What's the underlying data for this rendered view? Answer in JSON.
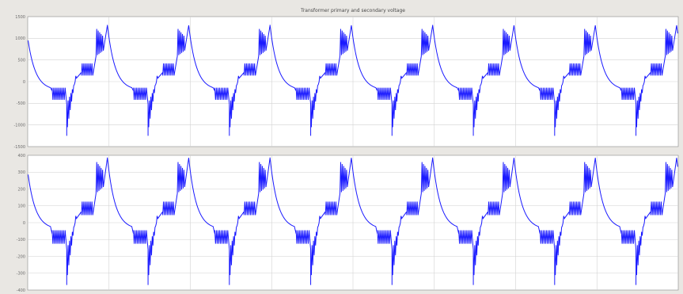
{
  "figure": {
    "background": "#e9e7e3",
    "plot_background": "#ffffff",
    "line_color": "#1a1aff",
    "grid_color": "#d2d2d2"
  },
  "chart_data": [
    {
      "type": "line",
      "title": "Transformer primary and secondary voltage",
      "xlabel": "",
      "ylabel": "",
      "ylim": [
        -1500,
        1500
      ],
      "yticks": [
        1500,
        1000,
        500,
        0,
        -500,
        -1000,
        -1500
      ],
      "ytick_labels": [
        "1500",
        "1000",
        "500",
        "0",
        "-500",
        "-1000",
        "-1500"
      ],
      "period_count": 8,
      "x_start_fraction_of_period": 0.72,
      "grid": true,
      "waveform": {
        "peak_positive": 1300,
        "peak_negative": -1250,
        "decay_end": -200,
        "plateau_mag": 280,
        "plateau_spread": 140,
        "step_down_low": -520,
        "rise_start": -1300,
        "rise_end": 80
      }
    },
    {
      "type": "line",
      "title": "",
      "xlabel": "",
      "ylabel": "",
      "ylim": [
        -400,
        400
      ],
      "yticks": [
        400,
        300,
        200,
        100,
        0,
        -100,
        -200,
        -300,
        -400
      ],
      "ytick_labels": [
        "400",
        "300",
        "200",
        "100",
        "0",
        "-100",
        "-200",
        "-300",
        "-400"
      ],
      "period_count": 8,
      "x_start_fraction_of_period": 0.72,
      "grid": true,
      "waveform": {
        "peak_positive": 385,
        "peak_negative": -370,
        "decay_end": -40,
        "plateau_mag": 85,
        "plateau_spread": 40,
        "step_down_low": -160,
        "rise_start": -385,
        "rise_end": 25
      }
    }
  ]
}
